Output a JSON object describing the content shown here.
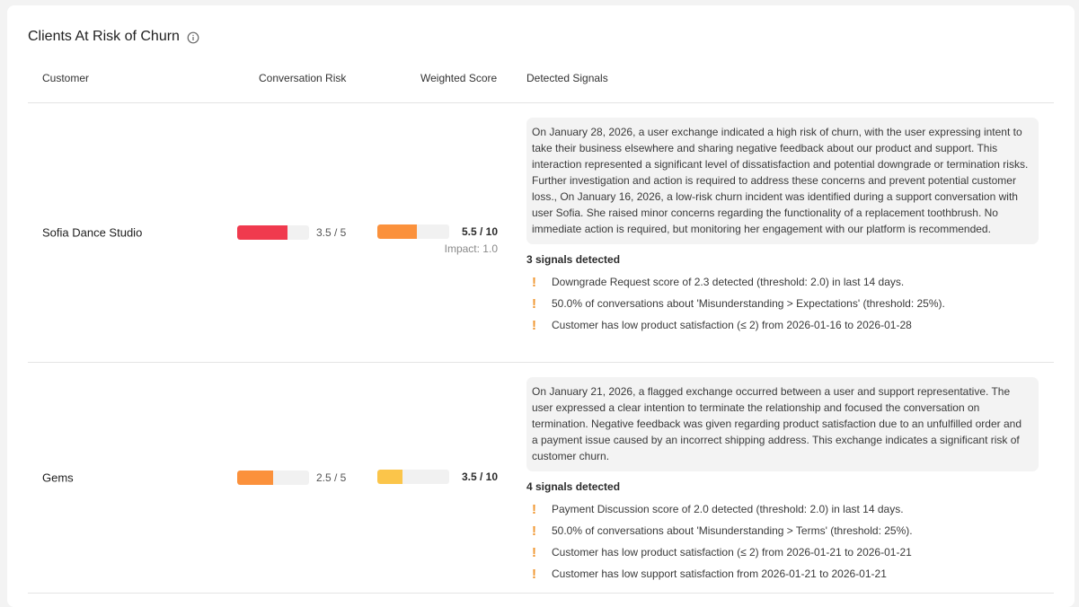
{
  "card": {
    "title": "Clients At Risk of Churn",
    "info_icon": "info-circle-icon"
  },
  "columns": {
    "customer": "Customer",
    "risk": "Conversation Risk",
    "score": "Weighted Score",
    "signals": "Detected Signals"
  },
  "colors": {
    "risk_high": "#f03a4e",
    "risk_medium": "#fb913c",
    "score_medium": "#fb913c",
    "score_low": "#fbc54a",
    "warning": "#f0962f",
    "track": "#f1f1f1"
  },
  "rows": [
    {
      "customer": "Sofia Dance Studio",
      "risk_value": 3.5,
      "risk_max": 5,
      "risk_label": "3.5 / 5",
      "risk_color": "#f03a4e",
      "score_value": 5.5,
      "score_max": 10,
      "score_label": "5.5 / 10",
      "score_color": "#fb913c",
      "impact_label": "Impact: 1.0",
      "summary": "On January 28, 2026, a user exchange indicated a high risk of churn, with the user expressing intent to take their business elsewhere and sharing negative feedback about our product and support. This interaction represented a significant level of dissatisfaction and potential downgrade or termination risks. Further investigation and action is required to address these concerns and prevent potential customer loss., On January 16, 2026, a low-risk churn incident was identified during a support conversation with user Sofia. She raised minor concerns regarding the functionality of a replacement toothbrush. No immediate action is required, but monitoring her engagement with our platform is recommended.",
      "signals_count": "3 signals detected",
      "signals": [
        "Downgrade Request score of 2.3 detected (threshold: 2.0) in last 14 days.",
        "50.0% of conversations about 'Misunderstanding > Expectations' (threshold: 25%).",
        "Customer has low product satisfaction (≤ 2) from 2026-01-16 to 2026-01-28"
      ]
    },
    {
      "customer": "Gems",
      "risk_value": 2.5,
      "risk_max": 5,
      "risk_label": "2.5 / 5",
      "risk_color": "#fb913c",
      "score_value": 3.5,
      "score_max": 10,
      "score_label": "3.5 / 10",
      "score_color": "#fbc54a",
      "summary": "On January 21, 2026, a flagged exchange occurred between a user and support representative. The user expressed a clear intention to terminate the relationship and focused the conversation on termination. Negative feedback was given regarding product satisfaction due to an unfulfilled order and a payment issue caused by an incorrect shipping address. This exchange indicates a significant risk of customer churn.",
      "signals_count": "4 signals detected",
      "signals": [
        "Payment Discussion score of 2.0 detected (threshold: 2.0) in last 14 days.",
        "50.0% of conversations about 'Misunderstanding > Terms' (threshold: 25%).",
        "Customer has low product satisfaction (≤ 2) from 2026-01-21 to 2026-01-21",
        "Customer has low support satisfaction from 2026-01-21 to 2026-01-21"
      ]
    }
  ]
}
